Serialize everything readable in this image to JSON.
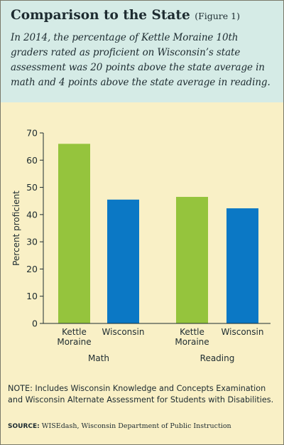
{
  "header": {
    "title": "Comparison to the State",
    "figure_label": "(Figure 1)",
    "subtitle": "In 2014, the percentage of Kettle Moraine 10th graders rated as proficient on Wisconsin’s state assessment was 20 points above the state average in math and 4 points above the state average in reading."
  },
  "chart_data": {
    "type": "bar",
    "ylabel": "Percent proficient",
    "ylim": [
      0,
      70
    ],
    "yticks": [
      0,
      10,
      20,
      30,
      40,
      50,
      60,
      70
    ],
    "grid": false,
    "groups": [
      {
        "label": "Math",
        "bars": [
          {
            "label": [
              "Kettle",
              "Moraine"
            ],
            "value": 66,
            "color": "#95c43d"
          },
          {
            "label": [
              "Wisconsin"
            ],
            "value": 45.5,
            "color": "#0b78c5"
          }
        ]
      },
      {
        "label": "Reading",
        "bars": [
          {
            "label": [
              "Kettle",
              "Moraine"
            ],
            "value": 46.5,
            "color": "#95c43d"
          },
          {
            "label": [
              "Wisconsin"
            ],
            "value": 42.3,
            "color": "#0b78c5"
          }
        ]
      }
    ]
  },
  "note": "NOTE: Includes Wisconsin Knowledge and Concepts Examination and Wisconsin Alternate Assessment for Students with Disabilities.",
  "source": {
    "label": "SOURCE:",
    "text": "WISEdash, Wisconsin Department of Public Instruction"
  }
}
